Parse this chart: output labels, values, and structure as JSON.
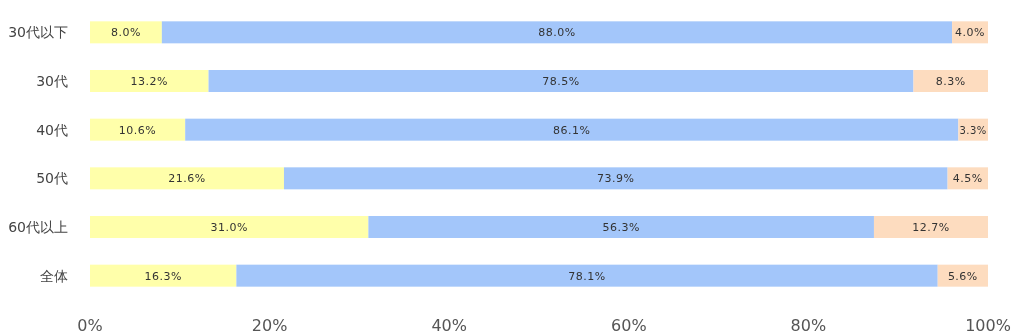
{
  "chart_data": {
    "type": "bar",
    "orientation": "horizontal",
    "stacked": true,
    "categories": [
      "30代以下",
      "30代",
      "40代",
      "50代",
      "60代以上",
      "全体"
    ],
    "series": [
      {
        "color": "#ffffaa",
        "values": [
          8.0,
          13.2,
          10.6,
          21.6,
          31.0,
          16.3
        ],
        "value_labels": [
          "8.0%",
          "13.2%",
          "10.6%",
          "21.6%",
          "31.0%",
          "16.3%"
        ]
      },
      {
        "color": "#a3c6fa",
        "values": [
          88.0,
          78.5,
          86.1,
          73.9,
          56.3,
          78.1
        ],
        "value_labels": [
          "88.0%",
          "78.5%",
          "86.1%",
          "73.9%",
          "56.3%",
          "78.1%"
        ]
      },
      {
        "color": "#fddcbf",
        "values": [
          4.0,
          8.3,
          3.3,
          4.5,
          12.7,
          5.6
        ],
        "value_labels": [
          "4.0%",
          "8.3%",
          "3.3%",
          "4.5%",
          "12.7%",
          "5.6%"
        ]
      }
    ],
    "xlim": [
      0,
      100
    ],
    "xticks": [
      {
        "value": 0,
        "label": "0%"
      },
      {
        "value": 20,
        "label": "20%"
      },
      {
        "value": 40,
        "label": "40%"
      },
      {
        "value": 60,
        "label": "60%"
      },
      {
        "value": 80,
        "label": "80%"
      },
      {
        "value": 100,
        "label": "100%"
      }
    ]
  }
}
